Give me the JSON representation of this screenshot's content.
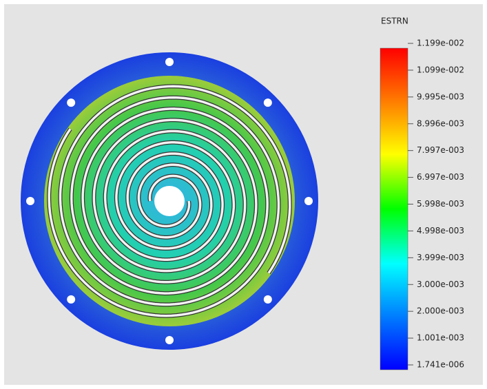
{
  "legend": {
    "title": "ESTRN",
    "labels": [
      "1.199e-002",
      "1.099e-002",
      "9.995e-003",
      "8.996e-003",
      "7.997e-003",
      "6.997e-003",
      "5.998e-003",
      "4.998e-003",
      "3.999e-003",
      "3.000e-003",
      "2.000e-003",
      "1.001e-003",
      "1.741e-006"
    ]
  }
}
